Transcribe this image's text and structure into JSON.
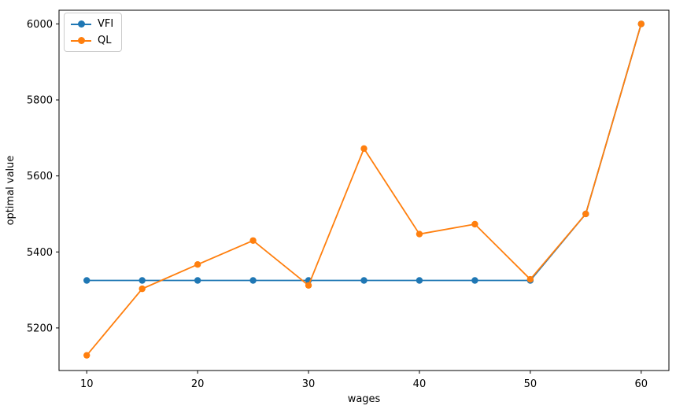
{
  "chart_data": {
    "type": "line",
    "title": "",
    "xlabel": "wages",
    "ylabel": "optimal value",
    "x": [
      10,
      15,
      20,
      25,
      30,
      35,
      40,
      45,
      50,
      55,
      60
    ],
    "series": [
      {
        "name": "VFI",
        "color": "#1f77b4",
        "values": [
          5325,
          5325,
          5325,
          5325,
          5325,
          5325,
          5325,
          5325,
          5325,
          5500,
          6000
        ]
      },
      {
        "name": "QL",
        "color": "#ff7f0e",
        "values": [
          5128,
          5303,
          5367,
          5430,
          5312,
          5672,
          5447,
          5473,
          5328,
          5500,
          6000
        ]
      }
    ],
    "xticks": [
      10,
      20,
      30,
      40,
      50,
      60
    ],
    "yticks": [
      5200,
      5400,
      5600,
      5800,
      6000
    ],
    "xlim": [
      7.5,
      62.5
    ],
    "ylim": [
      5088,
      6036
    ],
    "grid": false,
    "marker": "o",
    "legend_position": "upper left",
    "axis_color": "#000000",
    "background_color": "#ffffff"
  }
}
